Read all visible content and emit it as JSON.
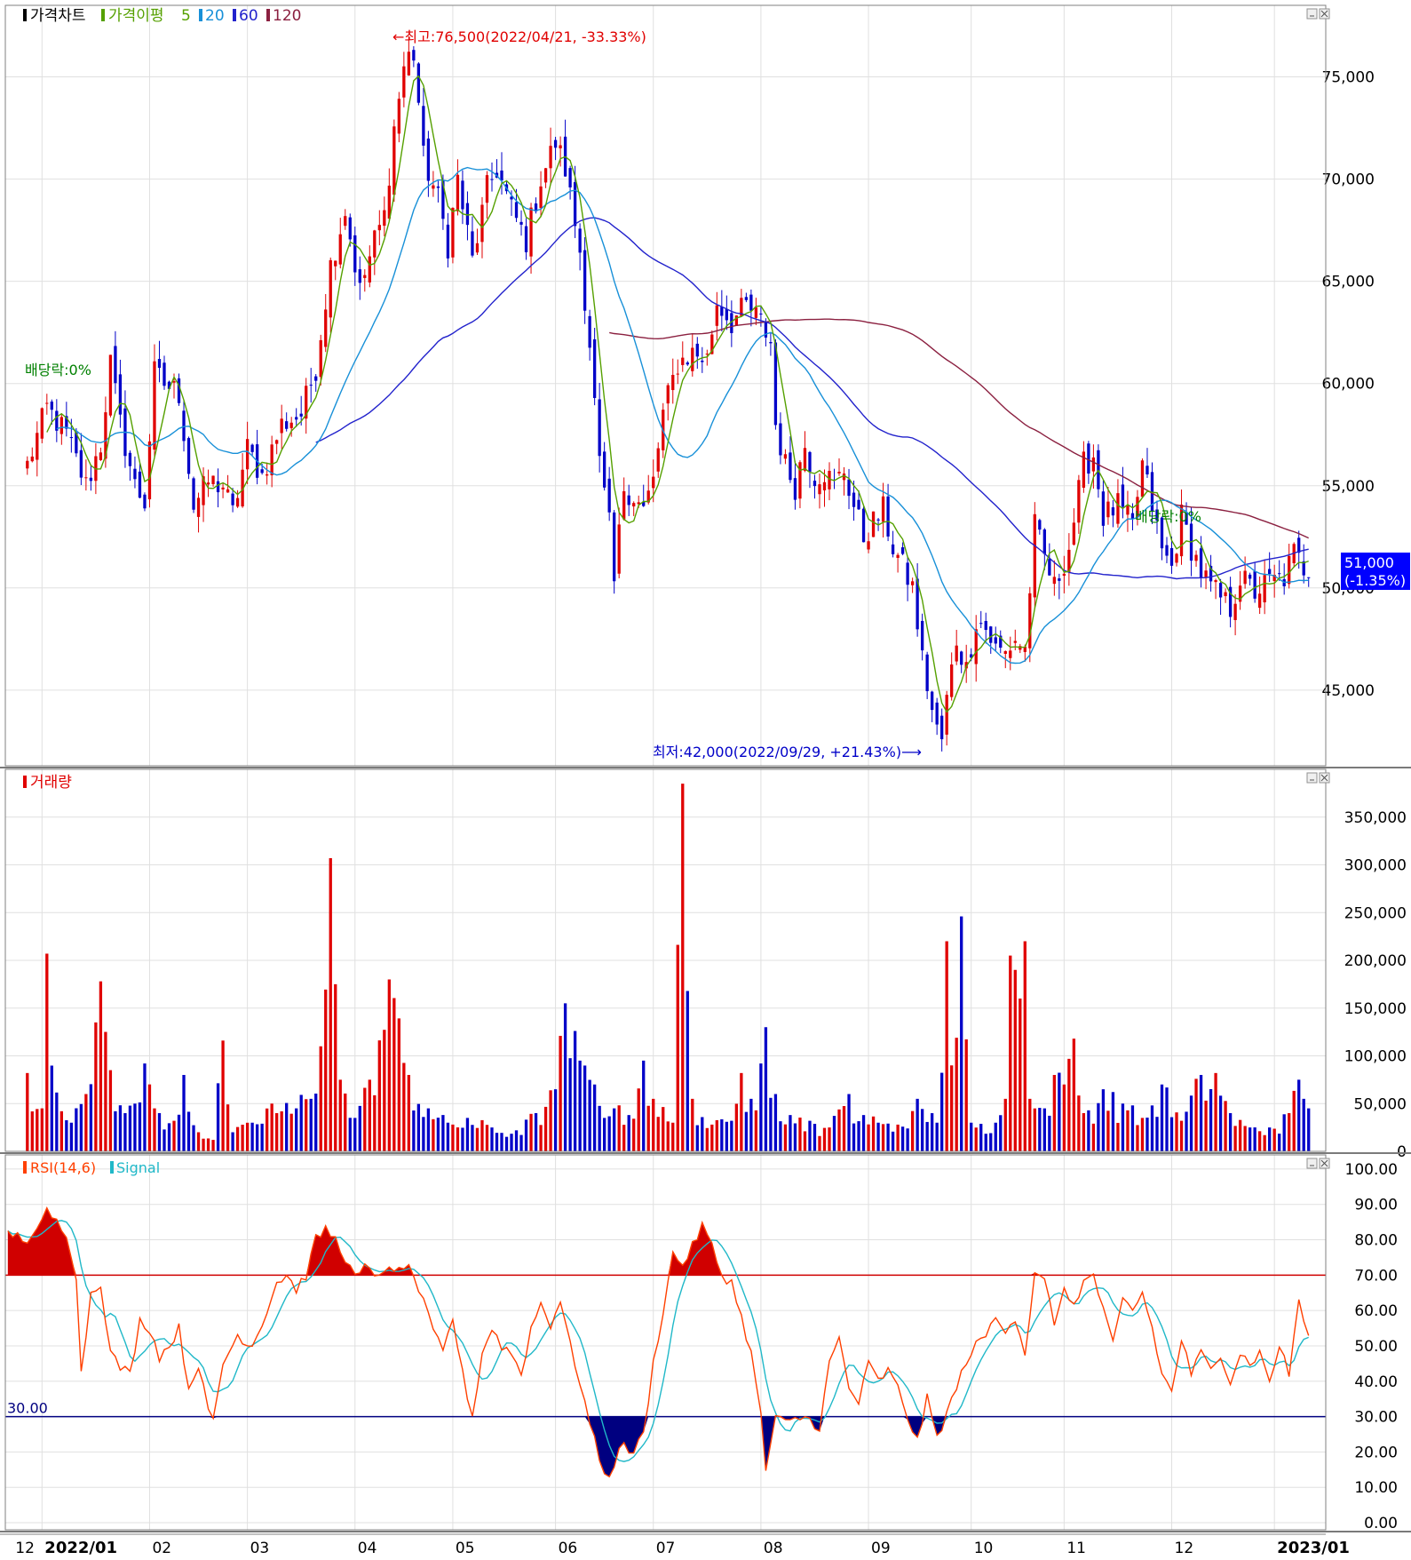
{
  "colors": {
    "up": "#e00000",
    "down": "#0000c8",
    "ma5": "#55a000",
    "ma20": "#1890d8",
    "ma60": "#2222cc",
    "ma120": "#8b2040",
    "rsi": "#ff4000",
    "signal": "#20b8c8",
    "overbought": "#d00000",
    "oversold": "#000080",
    "grid": "#e0e0e0",
    "axis": "#000000",
    "last_price_bg": "#0000ff"
  },
  "icons": [
    "minimize-icon",
    "close-icon"
  ],
  "price_panel": {
    "legend": {
      "chart_label": "가격차트",
      "ma_label": "가격이평",
      "ma5": "5",
      "ma20": "20",
      "ma60": "60",
      "ma120": "120"
    },
    "high_annotation": "←최고:76,500(2022/04/21, -33.33%)",
    "low_annotation": "최저:42,000(2022/09/29, +21.43%)⟶",
    "dividend_label_1": "배당락:0%",
    "dividend_label_2": "배당락:0%",
    "last_price": "51,000",
    "last_change": "(-1.35%)",
    "y_ticks": [
      "75,000",
      "70,000",
      "65,000",
      "60,000",
      "55,000",
      "50,000",
      "45,000"
    ],
    "y_tick_values": [
      75000,
      70000,
      65000,
      60000,
      55000,
      50000,
      45000
    ],
    "ylim": [
      41300,
      78500
    ]
  },
  "volume_panel": {
    "legend": "거래량",
    "y_ticks": [
      "350,000",
      "300,000",
      "250,000",
      "200,000",
      "150,000",
      "100,000",
      "50,000",
      "0"
    ],
    "y_tick_values": [
      350000,
      300000,
      250000,
      200000,
      150000,
      100000,
      50000,
      0
    ],
    "ylim": [
      0,
      400000
    ]
  },
  "rsi_panel": {
    "legend_rsi": "RSI(14,6)",
    "legend_signal": "Signal",
    "oversold_label": "30.00",
    "y_ticks": [
      "100.00",
      "90.00",
      "80.00",
      "70.00",
      "60.00",
      "50.00",
      "40.00",
      "30.00",
      "20.00",
      "10.00",
      "0.00"
    ],
    "y_tick_values": [
      100,
      90,
      80,
      70,
      60,
      50,
      40,
      30,
      20,
      10,
      0
    ],
    "ylim": [
      -2,
      104
    ],
    "overbought": 70,
    "oversold": 30
  },
  "x_axis": {
    "labels": [
      "12",
      "2022/01",
      "02",
      "03",
      "04",
      "05",
      "06",
      "07",
      "08",
      "09",
      "10",
      "11",
      "12",
      "2023/01"
    ],
    "positions": [
      -3,
      3,
      25,
      45,
      67,
      87,
      108,
      128,
      150,
      172,
      193,
      212,
      234,
      255
    ]
  },
  "chart_data": {
    "type": "candlestick",
    "title": "",
    "x_range": [
      -4.5,
      265.5
    ],
    "price_anchors": [
      [
        0,
        56000
      ],
      [
        4,
        58800
      ],
      [
        8,
        57500
      ],
      [
        12,
        55000
      ],
      [
        15,
        57000
      ],
      [
        17,
        61000
      ],
      [
        19,
        58000
      ],
      [
        22,
        55000
      ],
      [
        24,
        54200
      ],
      [
        26,
        60500
      ],
      [
        28,
        60000
      ],
      [
        31,
        59500
      ],
      [
        34,
        54000
      ],
      [
        37,
        55200
      ],
      [
        40,
        55000
      ],
      [
        42,
        53600
      ],
      [
        45,
        56800
      ],
      [
        48,
        55500
      ],
      [
        52,
        58000
      ],
      [
        56,
        58500
      ],
      [
        59,
        60800
      ],
      [
        62,
        65800
      ],
      [
        65,
        68500
      ],
      [
        68,
        64500
      ],
      [
        71,
        67000
      ],
      [
        73,
        68200
      ],
      [
        75,
        72500
      ],
      [
        77,
        75500
      ],
      [
        79,
        76500
      ],
      [
        81,
        71000
      ],
      [
        84,
        69000
      ],
      [
        86,
        66800
      ],
      [
        88,
        70000
      ],
      [
        91,
        66000
      ],
      [
        94,
        69500
      ],
      [
        96,
        70500
      ],
      [
        99,
        68500
      ],
      [
        102,
        67000
      ],
      [
        105,
        70000
      ],
      [
        108,
        71800
      ],
      [
        110,
        70500
      ],
      [
        113,
        66500
      ],
      [
        115,
        62000
      ],
      [
        117,
        56000
      ],
      [
        119,
        53000
      ],
      [
        120,
        50200
      ],
      [
        122,
        55000
      ],
      [
        124,
        54500
      ],
      [
        126,
        53800
      ],
      [
        128,
        55200
      ],
      [
        130,
        58500
      ],
      [
        133,
        61000
      ],
      [
        136,
        61500
      ],
      [
        139,
        61200
      ],
      [
        141,
        64000
      ],
      [
        144,
        63000
      ],
      [
        147,
        63800
      ],
      [
        150,
        63000
      ],
      [
        152,
        62000
      ],
      [
        153,
        58000
      ],
      [
        155,
        56000
      ],
      [
        157,
        55000
      ],
      [
        159,
        57000
      ],
      [
        161,
        55500
      ],
      [
        163,
        55700
      ],
      [
        165,
        55000
      ],
      [
        167,
        55800
      ],
      [
        169,
        54000
      ],
      [
        171,
        52500
      ],
      [
        173,
        53200
      ],
      [
        175,
        53800
      ],
      [
        177,
        52000
      ],
      [
        179,
        51000
      ],
      [
        181,
        50000
      ],
      [
        183,
        46500
      ],
      [
        185,
        44000
      ],
      [
        187,
        42000
      ],
      [
        188,
        44500
      ],
      [
        190,
        47500
      ],
      [
        192,
        46000
      ],
      [
        194,
        48500
      ],
      [
        196,
        48000
      ],
      [
        198,
        47000
      ],
      [
        200,
        46800
      ],
      [
        202,
        47500
      ],
      [
        204,
        47000
      ],
      [
        206,
        53000
      ],
      [
        208,
        51500
      ],
      [
        210,
        50000
      ],
      [
        213,
        52000
      ],
      [
        216,
        56000
      ],
      [
        218,
        56500
      ],
      [
        220,
        53500
      ],
      [
        223,
        54000
      ],
      [
        226,
        53000
      ],
      [
        228,
        56000
      ],
      [
        230,
        54000
      ],
      [
        232,
        51800
      ],
      [
        234,
        51000
      ],
      [
        236,
        53500
      ],
      [
        238,
        52000
      ],
      [
        240,
        50800
      ],
      [
        242,
        50000
      ],
      [
        244,
        49500
      ],
      [
        246,
        49000
      ],
      [
        248,
        50500
      ],
      [
        251,
        49800
      ],
      [
        254,
        50300
      ],
      [
        257,
        50500
      ],
      [
        259,
        51700
      ],
      [
        261,
        51000
      ]
    ],
    "volume_anchors": [
      [
        0,
        82000
      ],
      [
        3,
        45000
      ],
      [
        4,
        207000
      ],
      [
        7,
        42000
      ],
      [
        9,
        30000
      ],
      [
        12,
        60000
      ],
      [
        14,
        135000
      ],
      [
        15,
        178000
      ],
      [
        17,
        85000
      ],
      [
        20,
        40000
      ],
      [
        22,
        50000
      ],
      [
        24,
        92000
      ],
      [
        26,
        45000
      ],
      [
        30,
        32000
      ],
      [
        32,
        80000
      ],
      [
        35,
        20000
      ],
      [
        38,
        12000
      ],
      [
        40,
        116000
      ],
      [
        42,
        20000
      ],
      [
        46,
        30000
      ],
      [
        50,
        50000
      ],
      [
        55,
        45000
      ],
      [
        60,
        110000
      ],
      [
        62,
        307000
      ],
      [
        63,
        175000
      ],
      [
        64,
        75000
      ],
      [
        67,
        35000
      ],
      [
        70,
        75000
      ],
      [
        74,
        180000
      ],
      [
        78,
        80000
      ],
      [
        82,
        45000
      ],
      [
        86,
        30000
      ],
      [
        90,
        35000
      ],
      [
        95,
        25000
      ],
      [
        100,
        22000
      ],
      [
        104,
        40000
      ],
      [
        108,
        65000
      ],
      [
        110,
        155000
      ],
      [
        113,
        95000
      ],
      [
        116,
        70000
      ],
      [
        120,
        45000
      ],
      [
        123,
        38000
      ],
      [
        126,
        95000
      ],
      [
        128,
        55000
      ],
      [
        132,
        30000
      ],
      [
        134,
        385000
      ],
      [
        136,
        55000
      ],
      [
        140,
        28000
      ],
      [
        144,
        32000
      ],
      [
        146,
        82000
      ],
      [
        148,
        55000
      ],
      [
        150,
        92000
      ],
      [
        151,
        130000
      ],
      [
        153,
        60000
      ],
      [
        156,
        38000
      ],
      [
        160,
        32000
      ],
      [
        164,
        25000
      ],
      [
        168,
        60000
      ],
      [
        171,
        38000
      ],
      [
        174,
        30000
      ],
      [
        178,
        28000
      ],
      [
        182,
        55000
      ],
      [
        186,
        30000
      ],
      [
        188,
        220000
      ],
      [
        189,
        90000
      ],
      [
        191,
        246000
      ],
      [
        193,
        30000
      ],
      [
        198,
        30000
      ],
      [
        200,
        55000
      ],
      [
        201,
        205000
      ],
      [
        202,
        190000
      ],
      [
        203,
        160000
      ],
      [
        204,
        220000
      ],
      [
        205,
        55000
      ],
      [
        208,
        45000
      ],
      [
        210,
        80000
      ],
      [
        212,
        70000
      ],
      [
        214,
        118000
      ],
      [
        216,
        40000
      ],
      [
        220,
        65000
      ],
      [
        224,
        50000
      ],
      [
        228,
        35000
      ],
      [
        232,
        70000
      ],
      [
        236,
        32000
      ],
      [
        240,
        80000
      ],
      [
        243,
        82000
      ],
      [
        246,
        40000
      ],
      [
        250,
        25000
      ],
      [
        254,
        25000
      ],
      [
        258,
        40000
      ],
      [
        260,
        75000
      ],
      [
        261,
        55000
      ],
      [
        262,
        45000
      ]
    ],
    "rsi_anchors": [
      [
        -4,
        82
      ],
      [
        0,
        80
      ],
      [
        2,
        82
      ],
      [
        4,
        88
      ],
      [
        6,
        85
      ],
      [
        8,
        82
      ],
      [
        10,
        70
      ],
      [
        11,
        42
      ],
      [
        13,
        65
      ],
      [
        15,
        68
      ],
      [
        17,
        48
      ],
      [
        19,
        44
      ],
      [
        21,
        42
      ],
      [
        23,
        57
      ],
      [
        25,
        55
      ],
      [
        27,
        47
      ],
      [
        29,
        50
      ],
      [
        31,
        55
      ],
      [
        33,
        38
      ],
      [
        35,
        45
      ],
      [
        37,
        31
      ],
      [
        38,
        29
      ],
      [
        40,
        45
      ],
      [
        43,
        53
      ],
      [
        46,
        50
      ],
      [
        49,
        60
      ],
      [
        51,
        68
      ],
      [
        53,
        70
      ],
      [
        55,
        66
      ],
      [
        57,
        70
      ],
      [
        59,
        80
      ],
      [
        61,
        83
      ],
      [
        63,
        80
      ],
      [
        65,
        75
      ],
      [
        67,
        69
      ],
      [
        69,
        72
      ],
      [
        71,
        70
      ],
      [
        73,
        72
      ],
      [
        75,
        70
      ],
      [
        77,
        73
      ],
      [
        79,
        70
      ],
      [
        81,
        62
      ],
      [
        83,
        54
      ],
      [
        85,
        48
      ],
      [
        87,
        58
      ],
      [
        89,
        42
      ],
      [
        91,
        30
      ],
      [
        93,
        48
      ],
      [
        95,
        55
      ],
      [
        97,
        50
      ],
      [
        99,
        48
      ],
      [
        101,
        42
      ],
      [
        103,
        55
      ],
      [
        105,
        62
      ],
      [
        107,
        56
      ],
      [
        109,
        63
      ],
      [
        111,
        50
      ],
      [
        113,
        40
      ],
      [
        115,
        28
      ],
      [
        117,
        18
      ],
      [
        119,
        12
      ],
      [
        121,
        22
      ],
      [
        124,
        20
      ],
      [
        126,
        25
      ],
      [
        128,
        45
      ],
      [
        130,
        60
      ],
      [
        132,
        76
      ],
      [
        134,
        73
      ],
      [
        136,
        78
      ],
      [
        138,
        84
      ],
      [
        140,
        78
      ],
      [
        142,
        70
      ],
      [
        144,
        68
      ],
      [
        146,
        58
      ],
      [
        148,
        48
      ],
      [
        150,
        30
      ],
      [
        151,
        15
      ],
      [
        153,
        30
      ],
      [
        155,
        28
      ],
      [
        157,
        29
      ],
      [
        159,
        30
      ],
      [
        162,
        27
      ],
      [
        164,
        45
      ],
      [
        166,
        52
      ],
      [
        168,
        38
      ],
      [
        170,
        34
      ],
      [
        172,
        45
      ],
      [
        174,
        40
      ],
      [
        176,
        43
      ],
      [
        178,
        38
      ],
      [
        180,
        30
      ],
      [
        182,
        23
      ],
      [
        184,
        35
      ],
      [
        186,
        24
      ],
      [
        188,
        31
      ],
      [
        190,
        38
      ],
      [
        192,
        46
      ],
      [
        194,
        50
      ],
      [
        196,
        53
      ],
      [
        198,
        58
      ],
      [
        200,
        55
      ],
      [
        202,
        58
      ],
      [
        204,
        48
      ],
      [
        206,
        70
      ],
      [
        208,
        68
      ],
      [
        210,
        57
      ],
      [
        212,
        65
      ],
      [
        214,
        62
      ],
      [
        216,
        68
      ],
      [
        218,
        70
      ],
      [
        220,
        60
      ],
      [
        222,
        50
      ],
      [
        224,
        63
      ],
      [
        226,
        60
      ],
      [
        228,
        65
      ],
      [
        230,
        55
      ],
      [
        232,
        42
      ],
      [
        234,
        37
      ],
      [
        236,
        52
      ],
      [
        238,
        42
      ],
      [
        240,
        48
      ],
      [
        242,
        43
      ],
      [
        244,
        48
      ],
      [
        246,
        40
      ],
      [
        248,
        48
      ],
      [
        250,
        45
      ],
      [
        252,
        48
      ],
      [
        254,
        40
      ],
      [
        256,
        50
      ],
      [
        258,
        42
      ],
      [
        260,
        63
      ],
      [
        262,
        52
      ]
    ]
  }
}
